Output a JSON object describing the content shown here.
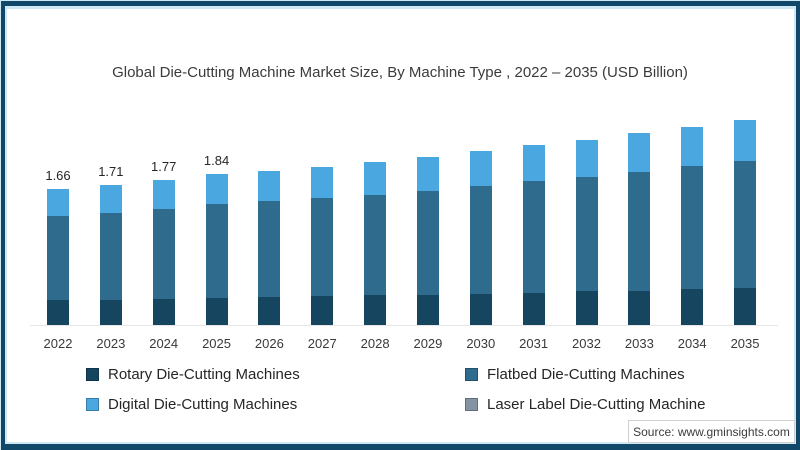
{
  "title": "Global Die-Cutting Machine Market Size, By Machine Type , 2022 – 2035 (USD Billion)",
  "source_text": "Source: www.gminsights.com",
  "colors": {
    "frame_border": "#11486a",
    "frame_inner_line": "#cfe9f4",
    "background": "#ffffff",
    "rotary": "#16465f",
    "flatbed": "#2e6b8c",
    "digital": "#4ba7e0",
    "laser": "#8393a3",
    "baseline": "#e6e6e6",
    "title_text": "#3b3b3b",
    "label_text": "#262626"
  },
  "chart_data": {
    "type": "bar",
    "stacked": true,
    "title": "Global Die-Cutting Machine Market Size, By Machine Type , 2022 – 2035 (USD Billion)",
    "xlabel": "",
    "ylabel": "USD Billion",
    "ylim": [
      0,
      2.8
    ],
    "grid": false,
    "legend_position": "bottom",
    "categories": [
      "2022",
      "2023",
      "2024",
      "2025",
      "2026",
      "2027",
      "2028",
      "2029",
      "2030",
      "2031",
      "2032",
      "2033",
      "2034",
      "2035"
    ],
    "series": [
      {
        "name": "Rotary Die-Cutting Machines",
        "color": "#16465f",
        "values": [
          0.3,
          0.31,
          0.32,
          0.33,
          0.34,
          0.35,
          0.36,
          0.37,
          0.38,
          0.39,
          0.41,
          0.42,
          0.44,
          0.45
        ]
      },
      {
        "name": "Flatbed Die-Cutting Machines",
        "color": "#2e6b8c",
        "values": [
          1.03,
          1.06,
          1.1,
          1.14,
          1.17,
          1.2,
          1.23,
          1.27,
          1.31,
          1.36,
          1.4,
          1.45,
          1.5,
          1.55
        ]
      },
      {
        "name": "Digital Die-Cutting Machines",
        "color": "#4ba7e0",
        "values": [
          0.33,
          0.34,
          0.35,
          0.37,
          0.37,
          0.38,
          0.4,
          0.41,
          0.43,
          0.44,
          0.45,
          0.47,
          0.48,
          0.5
        ]
      },
      {
        "name": "Laser Label Die-Cutting Machine",
        "color": "#8393a3",
        "values": [
          0,
          0,
          0,
          0,
          0,
          0,
          0,
          0,
          0,
          0,
          0,
          0,
          0,
          0
        ]
      }
    ],
    "totals": [
      1.66,
      1.71,
      1.77,
      1.84,
      1.88,
      1.93,
      1.99,
      2.05,
      2.12,
      2.19,
      2.26,
      2.34,
      2.42,
      2.5
    ],
    "data_labels": [
      "1.66",
      "1.71",
      "1.77",
      "1.84",
      "",
      "",
      "",
      "",
      "",
      "",
      "",
      "",
      "",
      ""
    ]
  }
}
